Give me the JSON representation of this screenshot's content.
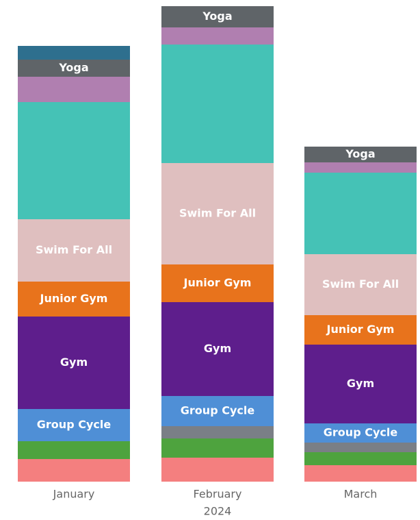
{
  "chart_data": {
    "type": "stacked_bar",
    "categories": [
      "January",
      "February",
      "March"
    ],
    "category_group_label": "2024",
    "series": [
      {
        "color": "#f47f7f",
        "values": [
          33,
          35,
          24
        ]
      },
      {
        "color": "#4ea33e",
        "values": [
          26,
          28,
          19
        ]
      },
      {
        "color": "#7a7f86",
        "values": [
          0,
          18,
          14
        ]
      },
      {
        "name": "Group Cycle",
        "color": "#4f8fd6",
        "values": [
          47,
          44,
          28
        ]
      },
      {
        "name": "Gym",
        "color": "#5e1e8c",
        "values": [
          135,
          137,
          115
        ]
      },
      {
        "name": "Junior Gym",
        "color": "#e8731c",
        "values": [
          51,
          55,
          43
        ]
      },
      {
        "name": "Swim For All",
        "color": "#dfbfbf",
        "values": [
          91,
          148,
          89
        ]
      },
      {
        "color": "#45c2b6",
        "values": [
          171,
          173,
          119
        ]
      },
      {
        "color": "#b07fb0",
        "values": [
          37,
          25,
          15
        ]
      },
      {
        "name": "Yoga",
        "color": "#5f6468",
        "values": [
          25,
          31,
          23
        ]
      },
      {
        "color": "#2e6f8e",
        "values": [
          20,
          0,
          0
        ]
      }
    ]
  }
}
